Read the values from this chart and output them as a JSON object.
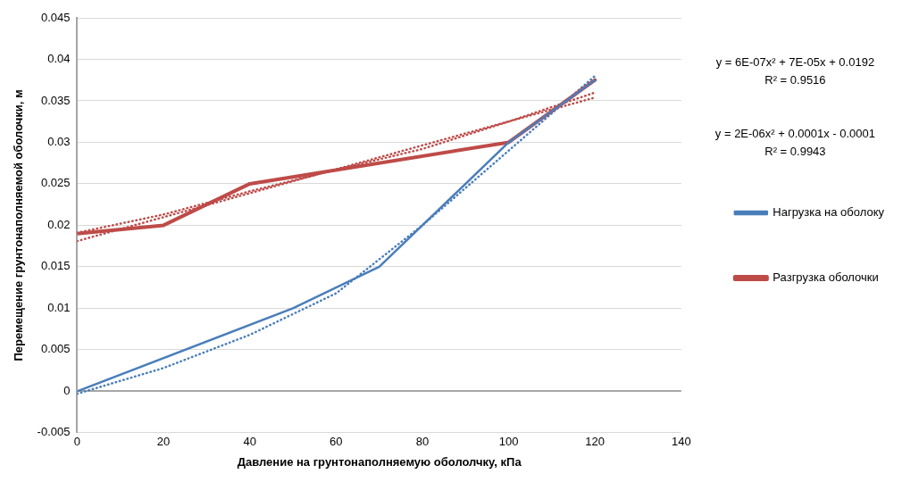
{
  "chart_data": {
    "type": "line",
    "xlabel": "Давление на грунтонаполняемую обололчку, кПа",
    "ylabel": "Перемещение грунтонаполняемой оболочки, м",
    "xlim": [
      0,
      140
    ],
    "xticks": [
      0,
      20,
      40,
      60,
      80,
      100,
      120,
      140
    ],
    "ylim": [
      -0.005,
      0.045
    ],
    "yticks": [
      -0.005,
      0,
      0.005,
      0.01,
      0.015,
      0.02,
      0.025,
      0.03,
      0.035,
      0.04,
      0.045
    ],
    "grid": "y",
    "legend": "right",
    "marker": "none",
    "series": [
      {
        "name": "Нагрузка на оболоку",
        "color": "#4a7ebb",
        "line_style": "solid",
        "x": [
          0,
          50,
          70,
          100,
          120
        ],
        "values": [
          0,
          0.01,
          0.015,
          0.03,
          0.0375
        ]
      },
      {
        "name": "Разгрузка оболочки",
        "color": "#be4b48",
        "line_style": "solid",
        "x": [
          0,
          20,
          40,
          100,
          120
        ],
        "values": [
          0.019,
          0.02,
          0.025,
          0.03,
          0.0375
        ]
      },
      {
        "color": "#4a7ebb",
        "line_style": "dotted",
        "x": [
          0,
          20,
          40,
          60,
          80,
          100,
          120
        ],
        "values": [
          -0.0003,
          0.0028,
          0.0068,
          0.0118,
          0.02,
          0.029,
          0.038
        ]
      },
      {
        "color": "#be4b48",
        "line_style": "dotted",
        "x": [
          0,
          20,
          40,
          60,
          80,
          100,
          120
        ],
        "values": [
          0.0191,
          0.0213,
          0.0241,
          0.0267,
          0.0292,
          0.0325,
          0.036
        ]
      },
      {
        "color": "#be4b48",
        "line_style": "dotted",
        "x": [
          0,
          120
        ],
        "values": [
          0.0181,
          0.0354
        ]
      }
    ],
    "annotations": [
      "y = 6E-07x² + 7E-05x + 0.0192",
      "R² = 0.9516",
      "y = 2E-06x² + 0.0001x - 0.0001",
      "R² = 0.9943"
    ]
  }
}
